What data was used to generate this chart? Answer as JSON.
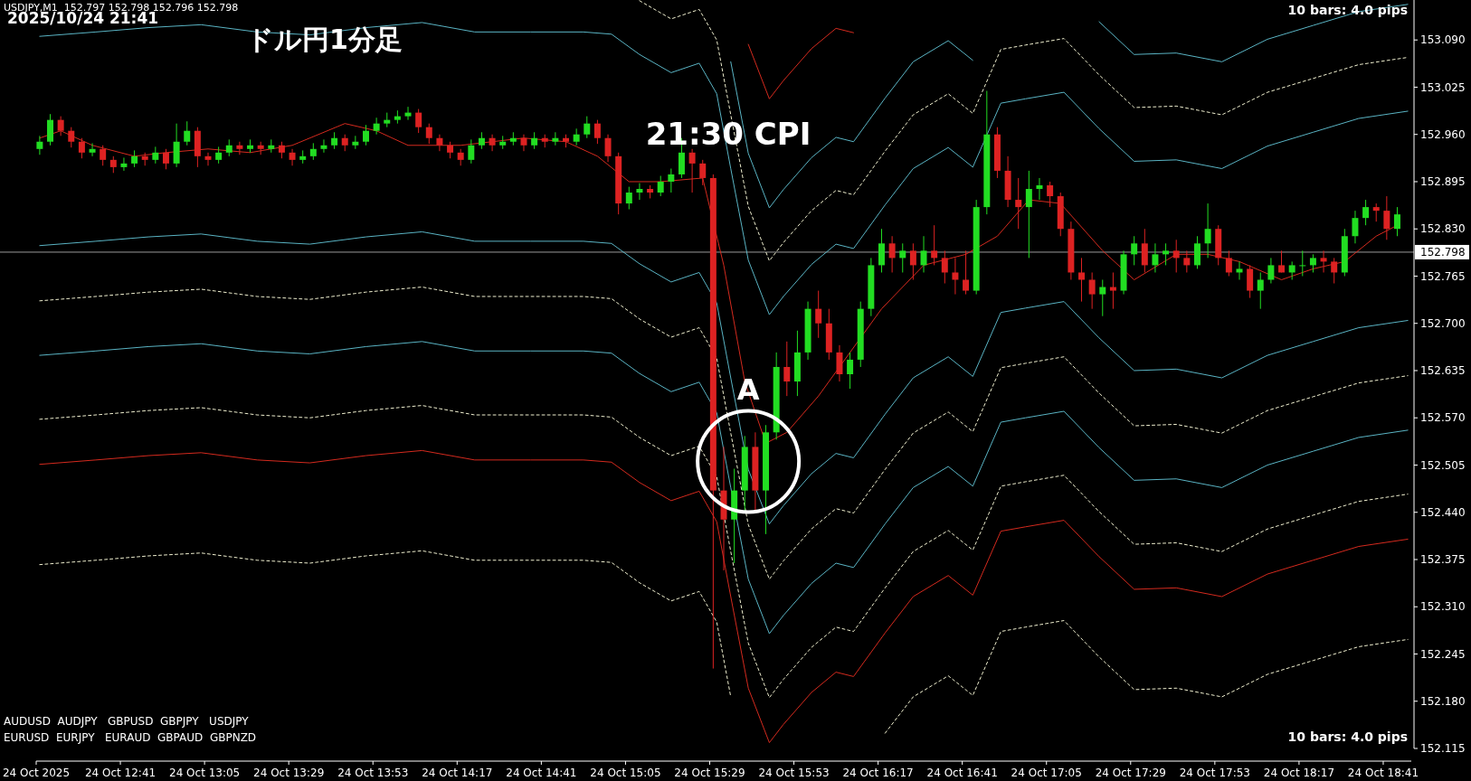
{
  "chart_data": {
    "type": "candlestick",
    "title": "ドル円1分足",
    "subtitle": "2025/10/24 21:41",
    "xlim": [
      "2025-10-24T12:17",
      "2025-10-24T18:49"
    ],
    "xticks": [
      {
        "value": "2025-10-24T12:17",
        "label": "24 Oct 2025"
      },
      {
        "value": "2025-10-24T12:41",
        "label": "24 Oct 12:41"
      },
      {
        "value": "2025-10-24T13:05",
        "label": "24 Oct 13:05"
      },
      {
        "value": "2025-10-24T13:29",
        "label": "24 Oct 13:29"
      },
      {
        "value": "2025-10-24T13:53",
        "label": "24 Oct 13:53"
      },
      {
        "value": "2025-10-24T14:17",
        "label": "24 Oct 14:17"
      },
      {
        "value": "2025-10-24T14:41",
        "label": "24 Oct 14:41"
      },
      {
        "value": "2025-10-24T15:05",
        "label": "24 Oct 15:05"
      },
      {
        "value": "2025-10-24T15:29",
        "label": "24 Oct 15:29"
      },
      {
        "value": "2025-10-24T15:53",
        "label": "24 Oct 15:53"
      },
      {
        "value": "2025-10-24T16:17",
        "label": "24 Oct 16:17"
      },
      {
        "value": "2025-10-24T16:41",
        "label": "24 Oct 16:41"
      },
      {
        "value": "2025-10-24T17:05",
        "label": "24 Oct 17:05"
      },
      {
        "value": "2025-10-24T17:29",
        "label": "24 Oct 17:29"
      },
      {
        "value": "2025-10-24T17:53",
        "label": "24 Oct 17:53"
      },
      {
        "value": "2025-10-24T18:17",
        "label": "24 Oct 18:17"
      },
      {
        "value": "2025-10-24T18:41",
        "label": "24 Oct 18:41"
      }
    ],
    "ylim": [
      152.115,
      153.145
    ],
    "yticks": [
      {
        "value": 153.09,
        "label": "153.090"
      },
      153.025,
      {
        "value": 152.96,
        "label": "152.960"
      },
      152.895,
      {
        "value": 152.83,
        "label": "152.830"
      },
      152.765,
      {
        "value": 152.7,
        "label": "152.700"
      },
      152.635,
      {
        "value": 152.57,
        "label": "152.570"
      },
      152.505,
      {
        "value": 152.44,
        "label": "152.440"
      },
      152.375,
      {
        "value": 152.31,
        "label": "152.310"
      },
      152.245,
      {
        "value": 152.18,
        "label": "152.180"
      },
      152.115
    ],
    "x": [
      "2025-10-24T12:18",
      "2025-10-24T12:21",
      "2025-10-24T12:24",
      "2025-10-24T12:27",
      "2025-10-24T12:30",
      "2025-10-24T12:33",
      "2025-10-24T12:36",
      "2025-10-24T12:39",
      "2025-10-24T12:42",
      "2025-10-24T12:45",
      "2025-10-24T12:48",
      "2025-10-24T12:51",
      "2025-10-24T12:54",
      "2025-10-24T12:57",
      "2025-10-24T13:00",
      "2025-10-24T13:03",
      "2025-10-24T13:06",
      "2025-10-24T13:09",
      "2025-10-24T13:12",
      "2025-10-24T13:15",
      "2025-10-24T13:18",
      "2025-10-24T13:21",
      "2025-10-24T13:24",
      "2025-10-24T13:27",
      "2025-10-24T13:30",
      "2025-10-24T13:33",
      "2025-10-24T13:36",
      "2025-10-24T13:39",
      "2025-10-24T13:42",
      "2025-10-24T13:45",
      "2025-10-24T13:48",
      "2025-10-24T13:51",
      "2025-10-24T13:54",
      "2025-10-24T13:57",
      "2025-10-24T14:00",
      "2025-10-24T14:03",
      "2025-10-24T14:06",
      "2025-10-24T14:09",
      "2025-10-24T14:12",
      "2025-10-24T14:15",
      "2025-10-24T14:18",
      "2025-10-24T14:21",
      "2025-10-24T14:24",
      "2025-10-24T14:27",
      "2025-10-24T14:30",
      "2025-10-24T14:33",
      "2025-10-24T14:36",
      "2025-10-24T14:39",
      "2025-10-24T14:42",
      "2025-10-24T14:45",
      "2025-10-24T14:48",
      "2025-10-24T14:51",
      "2025-10-24T14:54",
      "2025-10-24T14:57",
      "2025-10-24T15:00",
      "2025-10-24T15:03",
      "2025-10-24T15:06",
      "2025-10-24T15:09",
      "2025-10-24T15:12",
      "2025-10-24T15:15",
      "2025-10-24T15:18",
      "2025-10-24T15:21",
      "2025-10-24T15:24",
      "2025-10-24T15:27",
      "2025-10-24T15:30",
      "2025-10-24T15:33",
      "2025-10-24T15:36",
      "2025-10-24T15:39",
      "2025-10-24T15:42",
      "2025-10-24T15:45",
      "2025-10-24T15:48",
      "2025-10-24T15:51",
      "2025-10-24T15:54",
      "2025-10-24T15:57",
      "2025-10-24T16:00",
      "2025-10-24T16:03",
      "2025-10-24T16:06",
      "2025-10-24T16:09",
      "2025-10-24T16:12",
      "2025-10-24T16:15",
      "2025-10-24T16:18",
      "2025-10-24T16:21",
      "2025-10-24T16:24",
      "2025-10-24T16:27",
      "2025-10-24T16:30",
      "2025-10-24T16:33",
      "2025-10-24T16:36",
      "2025-10-24T16:39",
      "2025-10-24T16:42",
      "2025-10-24T16:45",
      "2025-10-24T16:48",
      "2025-10-24T16:51",
      "2025-10-24T16:54",
      "2025-10-24T16:57",
      "2025-10-24T17:00",
      "2025-10-24T17:03",
      "2025-10-24T17:06",
      "2025-10-24T17:09",
      "2025-10-24T17:12",
      "2025-10-24T17:15",
      "2025-10-24T17:18",
      "2025-10-24T17:21",
      "2025-10-24T17:24",
      "2025-10-24T17:27",
      "2025-10-24T17:30",
      "2025-10-24T17:33",
      "2025-10-24T17:36",
      "2025-10-24T17:39",
      "2025-10-24T17:42",
      "2025-10-24T17:45",
      "2025-10-24T17:48",
      "2025-10-24T17:51",
      "2025-10-24T17:54",
      "2025-10-24T17:57",
      "2025-10-24T18:00",
      "2025-10-24T18:03",
      "2025-10-24T18:06",
      "2025-10-24T18:09",
      "2025-10-24T18:12",
      "2025-10-24T18:15",
      "2025-10-24T18:18",
      "2025-10-24T18:21",
      "2025-10-24T18:24",
      "2025-10-24T18:27",
      "2025-10-24T18:30",
      "2025-10-24T18:33",
      "2025-10-24T18:36",
      "2025-10-24T18:39",
      "2025-10-24T18:42",
      "2025-10-24T18:45"
    ],
    "ohlc": [
      [
        152.94,
        152.958,
        152.932,
        152.95
      ],
      [
        152.95,
        152.988,
        152.945,
        152.98
      ],
      [
        152.98,
        152.985,
        152.958,
        152.965
      ],
      [
        152.965,
        152.97,
        152.942,
        152.95
      ],
      [
        152.95,
        152.955,
        152.927,
        152.935
      ],
      [
        152.935,
        152.948,
        152.93,
        152.94
      ],
      [
        152.94,
        152.945,
        152.917,
        152.925
      ],
      [
        152.925,
        152.93,
        152.907,
        152.915
      ],
      [
        152.915,
        152.928,
        152.91,
        152.92
      ],
      [
        152.92,
        152.938,
        152.915,
        152.93
      ],
      [
        152.93,
        152.935,
        152.917,
        152.925
      ],
      [
        152.925,
        152.943,
        152.92,
        152.935
      ],
      [
        152.935,
        152.94,
        152.912,
        152.92
      ],
      [
        152.92,
        152.975,
        152.915,
        152.95
      ],
      [
        152.95,
        152.978,
        152.945,
        152.965
      ],
      [
        152.965,
        152.97,
        152.915,
        152.93
      ],
      [
        152.93,
        152.935,
        152.917,
        152.925
      ],
      [
        152.925,
        152.943,
        152.92,
        152.935
      ],
      [
        152.935,
        152.953,
        152.93,
        152.945
      ],
      [
        152.945,
        152.95,
        152.932,
        152.94
      ],
      [
        152.94,
        152.953,
        152.935,
        152.945
      ],
      [
        152.945,
        152.95,
        152.932,
        152.94
      ],
      [
        152.94,
        152.953,
        152.935,
        152.945
      ],
      [
        152.945,
        152.95,
        152.927,
        152.935
      ],
      [
        152.935,
        152.94,
        152.917,
        152.925
      ],
      [
        152.925,
        152.938,
        152.92,
        152.93
      ],
      [
        152.93,
        152.948,
        152.925,
        152.94
      ],
      [
        152.94,
        152.953,
        152.935,
        152.945
      ],
      [
        152.945,
        152.963,
        152.94,
        152.955
      ],
      [
        152.955,
        152.96,
        152.937,
        152.945
      ],
      [
        152.945,
        152.958,
        152.94,
        152.95
      ],
      [
        152.95,
        152.973,
        152.945,
        152.965
      ],
      [
        152.965,
        152.983,
        152.96,
        152.975
      ],
      [
        152.975,
        152.99,
        152.97,
        152.98
      ],
      [
        152.98,
        152.993,
        152.975,
        152.985
      ],
      [
        152.985,
        152.998,
        152.98,
        152.99
      ],
      [
        152.99,
        152.995,
        152.962,
        152.97
      ],
      [
        152.97,
        152.975,
        152.947,
        152.955
      ],
      [
        152.955,
        152.96,
        152.937,
        152.945
      ],
      [
        152.945,
        152.95,
        152.927,
        152.935
      ],
      [
        152.935,
        152.94,
        152.917,
        152.925
      ],
      [
        152.925,
        152.953,
        152.92,
        152.945
      ],
      [
        152.945,
        152.963,
        152.94,
        152.955
      ],
      [
        152.955,
        152.96,
        152.937,
        152.945
      ],
      [
        152.945,
        152.958,
        152.94,
        152.95
      ],
      [
        152.95,
        152.963,
        152.945,
        152.955
      ],
      [
        152.955,
        152.96,
        152.937,
        152.945
      ],
      [
        152.945,
        152.963,
        152.94,
        152.955
      ],
      [
        152.955,
        152.96,
        152.942,
        152.95
      ],
      [
        152.95,
        152.963,
        152.945,
        152.955
      ],
      [
        152.955,
        152.96,
        152.942,
        152.95
      ],
      [
        152.95,
        152.968,
        152.945,
        152.96
      ],
      [
        152.96,
        152.985,
        152.955,
        152.975
      ],
      [
        152.975,
        152.98,
        152.947,
        152.955
      ],
      [
        152.955,
        152.96,
        152.922,
        152.93
      ],
      [
        152.93,
        152.935,
        152.85,
        152.865
      ],
      [
        152.865,
        152.888,
        152.857,
        152.88
      ],
      [
        152.88,
        152.893,
        152.87,
        152.885
      ],
      [
        152.885,
        152.89,
        152.872,
        152.88
      ],
      [
        152.88,
        152.903,
        152.875,
        152.895
      ],
      [
        152.895,
        152.913,
        152.88,
        152.905
      ],
      [
        152.905,
        152.955,
        152.9,
        152.935
      ],
      [
        152.935,
        152.94,
        152.88,
        152.92
      ],
      [
        152.92,
        152.925,
        152.89,
        152.9
      ],
      [
        152.9,
        152.905,
        152.225,
        152.47
      ],
      [
        152.47,
        152.53,
        152.36,
        152.43
      ],
      [
        152.43,
        152.5,
        152.37,
        152.47
      ],
      [
        152.47,
        152.545,
        152.44,
        152.53
      ],
      [
        152.53,
        152.55,
        152.44,
        152.47
      ],
      [
        152.47,
        152.56,
        152.41,
        152.55
      ],
      [
        152.55,
        152.66,
        152.54,
        152.64
      ],
      [
        152.64,
        152.675,
        152.6,
        152.62
      ],
      [
        152.62,
        152.69,
        152.6,
        152.66
      ],
      [
        152.66,
        152.73,
        152.65,
        152.72
      ],
      [
        152.72,
        152.745,
        152.68,
        152.7
      ],
      [
        152.7,
        152.72,
        152.65,
        152.66
      ],
      [
        152.66,
        152.67,
        152.62,
        152.63
      ],
      [
        152.63,
        152.66,
        152.61,
        152.65
      ],
      [
        152.65,
        152.73,
        152.64,
        152.72
      ],
      [
        152.72,
        152.79,
        152.71,
        152.78
      ],
      [
        152.78,
        152.83,
        152.77,
        152.81
      ],
      [
        152.81,
        152.82,
        152.77,
        152.79
      ],
      [
        152.79,
        152.81,
        152.77,
        152.8
      ],
      [
        152.8,
        152.81,
        152.76,
        152.78
      ],
      [
        152.78,
        152.82,
        152.77,
        152.8
      ],
      [
        152.8,
        152.835,
        152.78,
        152.79
      ],
      [
        152.79,
        152.8,
        152.755,
        152.77
      ],
      [
        152.77,
        152.79,
        152.74,
        152.76
      ],
      [
        152.76,
        152.8,
        152.74,
        152.745
      ],
      [
        152.745,
        152.87,
        152.74,
        152.86
      ],
      [
        152.86,
        153.02,
        152.85,
        152.96
      ],
      [
        152.96,
        152.97,
        152.9,
        152.91
      ],
      [
        152.91,
        152.93,
        152.86,
        152.87
      ],
      [
        152.87,
        152.9,
        152.83,
        152.86
      ],
      [
        152.86,
        152.91,
        152.79,
        152.885
      ],
      [
        152.885,
        152.9,
        152.87,
        152.89
      ],
      [
        152.89,
        152.895,
        152.86,
        152.875
      ],
      [
        152.875,
        152.88,
        152.82,
        152.83
      ],
      [
        152.83,
        152.84,
        152.76,
        152.77
      ],
      [
        152.77,
        152.79,
        152.73,
        152.76
      ],
      [
        152.76,
        152.77,
        152.72,
        152.74
      ],
      [
        152.74,
        152.76,
        152.71,
        152.75
      ],
      [
        152.75,
        152.77,
        152.72,
        152.745
      ],
      [
        152.745,
        152.8,
        152.74,
        152.795
      ],
      [
        152.795,
        152.82,
        152.78,
        152.81
      ],
      [
        152.81,
        152.83,
        152.77,
        152.78
      ],
      [
        152.78,
        152.81,
        152.77,
        152.795
      ],
      [
        152.795,
        152.81,
        152.78,
        152.8
      ],
      [
        152.8,
        152.815,
        152.77,
        152.79
      ],
      [
        152.79,
        152.8,
        152.77,
        152.78
      ],
      [
        152.78,
        152.82,
        152.775,
        152.81
      ],
      [
        152.81,
        152.865,
        152.79,
        152.83
      ],
      [
        152.83,
        152.835,
        152.78,
        152.79
      ],
      [
        152.79,
        152.8,
        152.765,
        152.77
      ],
      [
        152.77,
        152.785,
        152.76,
        152.775
      ],
      [
        152.775,
        152.78,
        152.735,
        152.745
      ],
      [
        152.745,
        152.77,
        152.72,
        152.76
      ],
      [
        152.76,
        152.79,
        152.755,
        152.78
      ],
      [
        152.78,
        152.8,
        152.77,
        152.77
      ],
      [
        152.77,
        152.785,
        152.76,
        152.78
      ],
      [
        152.78,
        152.8,
        152.765,
        152.78
      ],
      [
        152.78,
        152.795,
        152.77,
        152.79
      ],
      [
        152.79,
        152.8,
        152.77,
        152.785
      ],
      [
        152.785,
        152.79,
        152.755,
        152.77
      ],
      [
        152.77,
        152.83,
        152.765,
        152.82
      ],
      [
        152.82,
        152.855,
        152.81,
        152.845
      ],
      [
        152.845,
        152.87,
        152.835,
        152.86
      ],
      [
        152.86,
        152.865,
        152.84,
        152.855
      ],
      [
        152.855,
        152.875,
        152.815,
        152.83
      ],
      [
        152.83,
        152.86,
        152.82,
        152.85
      ]
    ],
    "series": [
      {
        "type": "line",
        "color": "#d42a1e",
        "line_style": "solid",
        "x": [
          "2025-10-24T15:40",
          "2025-10-24T15:46",
          "2025-10-24T15:50",
          "2025-10-24T15:58",
          "2025-10-24T16:05",
          "2025-10-24T16:10"
        ],
        "values": [
          153.084,
          153.009,
          153.034,
          153.078,
          153.106,
          153.1
        ]
      },
      {
        "type": "line",
        "color": "#5ab4c4",
        "line_style": "solid",
        "x": [
          "2025-10-24T15:35",
          "2025-10-24T15:40",
          "2025-10-24T15:46",
          "2025-10-24T15:50",
          "2025-10-24T15:58",
          "2025-10-24T16:05",
          "2025-10-24T16:10",
          "2025-10-24T16:19",
          "2025-10-24T16:27",
          "2025-10-24T16:37",
          "2025-10-24T16:44",
          "2025-10-24T16:52",
          "2025-10-24T16:59",
          "2025-10-24T17:10",
          "2025-10-24T17:20",
          "2025-10-24T17:30",
          "2025-10-24T17:42",
          "2025-10-24T17:55",
          "2025-10-24T18:08",
          "2025-10-24T18:21",
          "2025-10-24T18:34",
          "2025-10-24T18:48"
        ],
        "values": [
          153.06,
          152.934,
          152.859,
          152.884,
          152.928,
          152.956,
          152.95,
          153.01,
          153.06,
          153.089,
          153.062,
          null,
          null,
          null,
          153.115,
          153.07,
          153.072,
          153.06,
          153.091,
          153.11,
          153.129,
          153.139
        ]
      },
      {
        "type": "line",
        "color": "#f0f0d0",
        "line_style": "dashed",
        "x": [
          "2025-10-24T15:09",
          "2025-10-24T15:18",
          "2025-10-24T15:26",
          "2025-10-24T15:31",
          "2025-10-24T15:35",
          "2025-10-24T15:40",
          "2025-10-24T15:46",
          "2025-10-24T15:50",
          "2025-10-24T15:58",
          "2025-10-24T16:05",
          "2025-10-24T16:10",
          "2025-10-24T16:19",
          "2025-10-24T16:27",
          "2025-10-24T16:37",
          "2025-10-24T16:44",
          "2025-10-24T16:52",
          "2025-10-24T16:59",
          "2025-10-24T17:10",
          "2025-10-24T17:20",
          "2025-10-24T17:30",
          "2025-10-24T17:42",
          "2025-10-24T17:55",
          "2025-10-24T18:08",
          "2025-10-24T18:21",
          "2025-10-24T18:34",
          "2025-10-24T18:48"
        ],
        "values": [
          153.144,
          153.119,
          153.132,
          153.09,
          152.987,
          152.861,
          152.786,
          152.811,
          152.855,
          152.883,
          152.877,
          152.937,
          152.987,
          153.016,
          152.989,
          153.077,
          153.083,
          153.092,
          153.042,
          152.997,
          152.999,
          152.987,
          153.018,
          153.037,
          153.056,
          153.066
        ]
      },
      {
        "type": "line",
        "color": "#5ab4c4",
        "line_style": "solid",
        "x": [
          "2025-10-24T12:18",
          "2025-10-24T12:34",
          "2025-10-24T12:49",
          "2025-10-24T13:04",
          "2025-10-24T13:20",
          "2025-10-24T13:35",
          "2025-10-24T13:51",
          "2025-10-24T14:07",
          "2025-10-24T14:22",
          "2025-10-24T14:38",
          "2025-10-24T14:53",
          "2025-10-24T15:01",
          "2025-10-24T15:09",
          "2025-10-24T15:18",
          "2025-10-24T15:26",
          "2025-10-24T15:31",
          "2025-10-24T15:35",
          "2025-10-24T15:40",
          "2025-10-24T15:46",
          "2025-10-24T15:50",
          "2025-10-24T15:58",
          "2025-10-24T16:05",
          "2025-10-24T16:10",
          "2025-10-24T16:19",
          "2025-10-24T16:27",
          "2025-10-24T16:37",
          "2025-10-24T16:44",
          "2025-10-24T16:52",
          "2025-10-24T16:59",
          "2025-10-24T17:10",
          "2025-10-24T17:20",
          "2025-10-24T17:30",
          "2025-10-24T17:42",
          "2025-10-24T17:55",
          "2025-10-24T18:08",
          "2025-10-24T18:21",
          "2025-10-24T18:34",
          "2025-10-24T18:48"
        ],
        "values": [
          153.095,
          153.101,
          153.107,
          153.111,
          153.101,
          153.097,
          153.107,
          153.114,
          153.101,
          153.101,
          153.101,
          153.098,
          153.07,
          153.045,
          153.058,
          153.016,
          152.913,
          152.787,
          152.712,
          152.737,
          152.781,
          152.809,
          152.803,
          152.863,
          152.913,
          152.942,
          152.915,
          153.003,
          153.009,
          153.018,
          152.968,
          152.923,
          152.925,
          152.913,
          152.944,
          152.963,
          152.982,
          152.992
        ]
      },
      {
        "type": "line",
        "color": "#5ab4c4",
        "line_style": "solid",
        "x": [
          "2025-10-24T12:18",
          "2025-10-24T12:34",
          "2025-10-24T12:49",
          "2025-10-24T13:04",
          "2025-10-24T13:20",
          "2025-10-24T13:35",
          "2025-10-24T13:51",
          "2025-10-24T14:07",
          "2025-10-24T14:22",
          "2025-10-24T14:38",
          "2025-10-24T14:53",
          "2025-10-24T15:01",
          "2025-10-24T15:09",
          "2025-10-24T15:18",
          "2025-10-24T15:26",
          "2025-10-24T15:31",
          "2025-10-24T15:35",
          "2025-10-24T15:40",
          "2025-10-24T15:46",
          "2025-10-24T15:50",
          "2025-10-24T15:58",
          "2025-10-24T16:05",
          "2025-10-24T16:10",
          "2025-10-24T16:19",
          "2025-10-24T16:27",
          "2025-10-24T16:37",
          "2025-10-24T16:44",
          "2025-10-24T16:52",
          "2025-10-24T16:59",
          "2025-10-24T17:10",
          "2025-10-24T17:20",
          "2025-10-24T17:30",
          "2025-10-24T17:42",
          "2025-10-24T17:55",
          "2025-10-24T18:08",
          "2025-10-24T18:21",
          "2025-10-24T18:34",
          "2025-10-24T18:48"
        ],
        "values": [
          152.807,
          152.813,
          152.819,
          152.823,
          152.813,
          152.809,
          152.819,
          152.826,
          152.813,
          152.813,
          152.813,
          152.81,
          152.782,
          152.757,
          152.77,
          152.728,
          152.625,
          152.499,
          152.424,
          152.449,
          152.493,
          152.521,
          152.515,
          152.575,
          152.625,
          152.654,
          152.627,
          152.715,
          152.721,
          152.73,
          152.68,
          152.635,
          152.637,
          152.625,
          152.656,
          152.675,
          152.694,
          152.704
        ]
      },
      {
        "type": "line",
        "color": "#f0f0d0",
        "line_style": "dashed",
        "x": [
          "2025-10-24T12:18",
          "2025-10-24T12:34",
          "2025-10-24T12:49",
          "2025-10-24T13:04",
          "2025-10-24T13:20",
          "2025-10-24T13:35",
          "2025-10-24T13:51",
          "2025-10-24T14:07",
          "2025-10-24T14:22",
          "2025-10-24T14:38",
          "2025-10-24T14:53",
          "2025-10-24T15:01",
          "2025-10-24T15:09",
          "2025-10-24T15:18",
          "2025-10-24T15:26",
          "2025-10-24T15:31",
          "2025-10-24T15:35",
          "2025-10-24T15:40",
          "2025-10-24T15:46",
          "2025-10-24T15:50",
          "2025-10-24T15:58",
          "2025-10-24T16:05",
          "2025-10-24T16:10",
          "2025-10-24T16:19",
          "2025-10-24T16:27",
          "2025-10-24T16:37",
          "2025-10-24T16:44",
          "2025-10-24T16:52",
          "2025-10-24T16:59",
          "2025-10-24T17:10",
          "2025-10-24T17:20",
          "2025-10-24T17:30",
          "2025-10-24T17:42",
          "2025-10-24T17:55",
          "2025-10-24T18:08",
          "2025-10-24T18:21",
          "2025-10-24T18:34",
          "2025-10-24T18:48"
        ],
        "values": [
          152.731,
          152.737,
          152.743,
          152.747,
          152.737,
          152.733,
          152.743,
          152.75,
          152.737,
          152.737,
          152.737,
          152.734,
          152.706,
          152.681,
          152.694,
          152.652,
          152.549,
          152.423,
          152.348,
          152.373,
          152.417,
          152.445,
          152.439,
          152.499,
          152.549,
          152.578,
          152.551,
          152.639,
          152.645,
          152.654,
          152.604,
          152.559,
          152.561,
          152.549,
          152.58,
          152.599,
          152.618,
          152.628
        ]
      },
      {
        "type": "line",
        "color": "#5ab4c4",
        "line_style": "solid",
        "x": [
          "2025-10-24T12:18",
          "2025-10-24T12:34",
          "2025-10-24T12:49",
          "2025-10-24T13:04",
          "2025-10-24T13:20",
          "2025-10-24T13:35",
          "2025-10-24T13:51",
          "2025-10-24T14:07",
          "2025-10-24T14:22",
          "2025-10-24T14:38",
          "2025-10-24T14:53",
          "2025-10-24T15:01",
          "2025-10-24T15:09",
          "2025-10-24T15:18",
          "2025-10-24T15:26",
          "2025-10-24T15:31",
          "2025-10-24T15:35",
          "2025-10-24T15:40",
          "2025-10-24T15:46",
          "2025-10-24T15:50",
          "2025-10-24T15:58",
          "2025-10-24T16:05",
          "2025-10-24T16:10",
          "2025-10-24T16:19",
          "2025-10-24T16:27",
          "2025-10-24T16:37",
          "2025-10-24T16:44",
          "2025-10-24T16:52",
          "2025-10-24T16:59",
          "2025-10-24T17:10",
          "2025-10-24T17:20",
          "2025-10-24T17:30",
          "2025-10-24T17:42",
          "2025-10-24T17:55",
          "2025-10-24T18:08",
          "2025-10-24T18:21",
          "2025-10-24T18:34",
          "2025-10-24T18:48"
        ],
        "values": [
          152.656,
          152.662,
          152.668,
          152.672,
          152.662,
          152.658,
          152.668,
          152.675,
          152.662,
          152.662,
          152.662,
          152.659,
          152.631,
          152.606,
          152.619,
          152.577,
          152.474,
          152.348,
          152.273,
          152.298,
          152.342,
          152.37,
          152.364,
          152.424,
          152.474,
          152.503,
          152.476,
          152.564,
          152.57,
          152.579,
          152.529,
          152.484,
          152.486,
          152.474,
          152.505,
          152.524,
          152.543,
          152.553
        ]
      },
      {
        "type": "line",
        "color": "#f0f0d0",
        "line_style": "dashed",
        "x": [
          "2025-10-24T12:18",
          "2025-10-24T12:34",
          "2025-10-24T12:49",
          "2025-10-24T13:04",
          "2025-10-24T13:20",
          "2025-10-24T13:35",
          "2025-10-24T13:51",
          "2025-10-24T14:07",
          "2025-10-24T14:22",
          "2025-10-24T14:38",
          "2025-10-24T14:53",
          "2025-10-24T15:01",
          "2025-10-24T15:09",
          "2025-10-24T15:18",
          "2025-10-24T15:26",
          "2025-10-24T15:31",
          "2025-10-24T15:35",
          "2025-10-24T15:40",
          "2025-10-24T15:46",
          "2025-10-24T15:50",
          "2025-10-24T15:58",
          "2025-10-24T16:05",
          "2025-10-24T16:10",
          "2025-10-24T16:19",
          "2025-10-24T16:27",
          "2025-10-24T16:37",
          "2025-10-24T16:44",
          "2025-10-24T16:52",
          "2025-10-24T16:59",
          "2025-10-24T17:10",
          "2025-10-24T17:20",
          "2025-10-24T17:30",
          "2025-10-24T17:42",
          "2025-10-24T17:55",
          "2025-10-24T18:08",
          "2025-10-24T18:21",
          "2025-10-24T18:34",
          "2025-10-24T18:48"
        ],
        "values": [
          152.568,
          152.574,
          152.58,
          152.584,
          152.574,
          152.57,
          152.58,
          152.587,
          152.574,
          152.574,
          152.574,
          152.571,
          152.543,
          152.518,
          152.531,
          152.489,
          152.386,
          152.26,
          152.185,
          152.21,
          152.254,
          152.282,
          152.276,
          152.336,
          152.386,
          152.415,
          152.388,
          152.476,
          152.482,
          152.491,
          152.441,
          152.396,
          152.398,
          152.386,
          152.417,
          152.436,
          152.455,
          152.465
        ]
      },
      {
        "type": "line",
        "color": "#d42a1e",
        "line_style": "solid",
        "x": [
          "2025-10-24T12:18",
          "2025-10-24T12:34",
          "2025-10-24T12:49",
          "2025-10-24T13:04",
          "2025-10-24T13:20",
          "2025-10-24T13:35",
          "2025-10-24T13:51",
          "2025-10-24T14:07",
          "2025-10-24T14:22",
          "2025-10-24T14:38",
          "2025-10-24T14:53",
          "2025-10-24T15:01",
          "2025-10-24T15:09",
          "2025-10-24T15:18",
          "2025-10-24T15:26",
          "2025-10-24T15:31",
          "2025-10-24T15:35",
          "2025-10-24T15:40",
          "2025-10-24T15:46",
          "2025-10-24T15:50",
          "2025-10-24T15:58",
          "2025-10-24T16:05",
          "2025-10-24T16:10",
          "2025-10-24T16:19",
          "2025-10-24T16:27",
          "2025-10-24T16:37",
          "2025-10-24T16:44",
          "2025-10-24T16:52",
          "2025-10-24T16:59",
          "2025-10-24T17:10",
          "2025-10-24T17:20",
          "2025-10-24T17:30",
          "2025-10-24T17:42",
          "2025-10-24T17:55",
          "2025-10-24T18:08",
          "2025-10-24T18:21",
          "2025-10-24T18:34",
          "2025-10-24T18:48"
        ],
        "values": [
          152.506,
          152.512,
          152.518,
          152.522,
          152.512,
          152.508,
          152.518,
          152.525,
          152.512,
          152.512,
          152.512,
          152.509,
          152.481,
          152.456,
          152.469,
          152.427,
          152.324,
          152.198,
          152.123,
          152.148,
          152.192,
          152.22,
          152.214,
          152.274,
          152.324,
          152.353,
          152.326,
          152.414,
          152.42,
          152.429,
          152.379,
          152.334,
          152.336,
          152.324,
          152.355,
          152.374,
          152.393,
          152.403
        ]
      },
      {
        "type": "line",
        "color": "#f0f0d0",
        "line_style": "dashed",
        "x": [
          "2025-10-24T12:18",
          "2025-10-24T12:34",
          "2025-10-24T12:49",
          "2025-10-24T13:04",
          "2025-10-24T13:20",
          "2025-10-24T13:35",
          "2025-10-24T13:51",
          "2025-10-24T14:07",
          "2025-10-24T14:22",
          "2025-10-24T14:38",
          "2025-10-24T14:53",
          "2025-10-24T15:01",
          "2025-10-24T15:09",
          "2025-10-24T15:18",
          "2025-10-24T15:26",
          "2025-10-24T15:31",
          "2025-10-24T15:35",
          "2025-10-24T15:40",
          "2025-10-24T15:46",
          "2025-10-24T15:50",
          "2025-10-24T15:58",
          "2025-10-24T16:05",
          "2025-10-24T16:10",
          "2025-10-24T16:19",
          "2025-10-24T16:27",
          "2025-10-24T16:37",
          "2025-10-24T16:44",
          "2025-10-24T16:52",
          "2025-10-24T16:59",
          "2025-10-24T17:10",
          "2025-10-24T17:20",
          "2025-10-24T17:30",
          "2025-10-24T17:42",
          "2025-10-24T17:55",
          "2025-10-24T18:08",
          "2025-10-24T18:21",
          "2025-10-24T18:34",
          "2025-10-24T18:48"
        ],
        "values": [
          152.368,
          152.374,
          152.38,
          152.384,
          152.374,
          152.37,
          152.38,
          152.387,
          152.374,
          152.374,
          152.374,
          152.371,
          152.343,
          152.318,
          152.331,
          152.289,
          152.186,
          null,
          null,
          null,
          null,
          null,
          null,
          152.136,
          152.186,
          152.215,
          152.188,
          152.276,
          152.282,
          152.291,
          152.241,
          152.196,
          152.198,
          152.186,
          152.217,
          152.236,
          152.255,
          152.265
        ]
      },
      {
        "type": "line",
        "color": "#d42a1e",
        "line_style": "solid",
        "x": [
          "2025-10-24T12:18",
          "2025-10-24T12:24",
          "2025-10-24T12:33",
          "2025-10-24T12:45",
          "2025-10-24T12:54",
          "2025-10-24T13:06",
          "2025-10-24T13:18",
          "2025-10-24T13:30",
          "2025-10-24T13:45",
          "2025-10-24T13:54",
          "2025-10-24T14:03",
          "2025-10-24T14:18",
          "2025-10-24T14:36",
          "2025-10-24T14:48",
          "2025-10-24T14:57",
          "2025-10-24T15:06",
          "2025-10-24T15:15",
          "2025-10-24T15:27",
          "2025-10-24T15:33",
          "2025-10-24T15:39",
          "2025-10-24T15:45",
          "2025-10-24T15:51",
          "2025-10-24T16:00",
          "2025-10-24T16:09",
          "2025-10-24T16:18",
          "2025-10-24T16:30",
          "2025-10-24T16:42",
          "2025-10-24T16:51",
          "2025-10-24T17:00",
          "2025-10-24T17:09",
          "2025-10-24T17:21",
          "2025-10-24T17:30",
          "2025-10-24T17:42",
          "2025-10-24T17:51",
          "2025-10-24T18:00",
          "2025-10-24T18:12",
          "2025-10-24T18:21",
          "2025-10-24T18:30",
          "2025-10-24T18:39",
          "2025-10-24T18:45"
        ],
        "values": [
          152.955,
          152.965,
          152.945,
          152.93,
          152.935,
          152.94,
          152.935,
          152.945,
          152.975,
          152.965,
          152.945,
          152.945,
          152.955,
          152.95,
          152.93,
          152.895,
          152.895,
          152.9,
          152.78,
          152.62,
          152.535,
          152.55,
          152.6,
          152.66,
          152.72,
          152.78,
          152.795,
          152.82,
          152.87,
          152.865,
          152.8,
          152.76,
          152.795,
          152.795,
          152.785,
          152.76,
          152.775,
          152.785,
          152.82,
          152.835
        ]
      }
    ],
    "ref_lines": [
      {
        "axis": "y",
        "value": 152.798,
        "label": "152.798",
        "color": "#9a9a9a"
      }
    ],
    "annotations": [
      "21:30 CPI",
      {
        "text": "A",
        "x": "2025-10-24T15:40",
        "y": 152.51
      },
      "USDJPY,M1  152.797 152.798 152.796 152.798",
      "10 bars: 4.0 pips",
      "10 bars: 4.0 pips",
      "AUDUSD  AUDJPY   GBPUSD  GBPJPY   USDJPY",
      "EURUSD  EURJPY   EURAUD  GBPAUD  GBPNZD"
    ]
  }
}
